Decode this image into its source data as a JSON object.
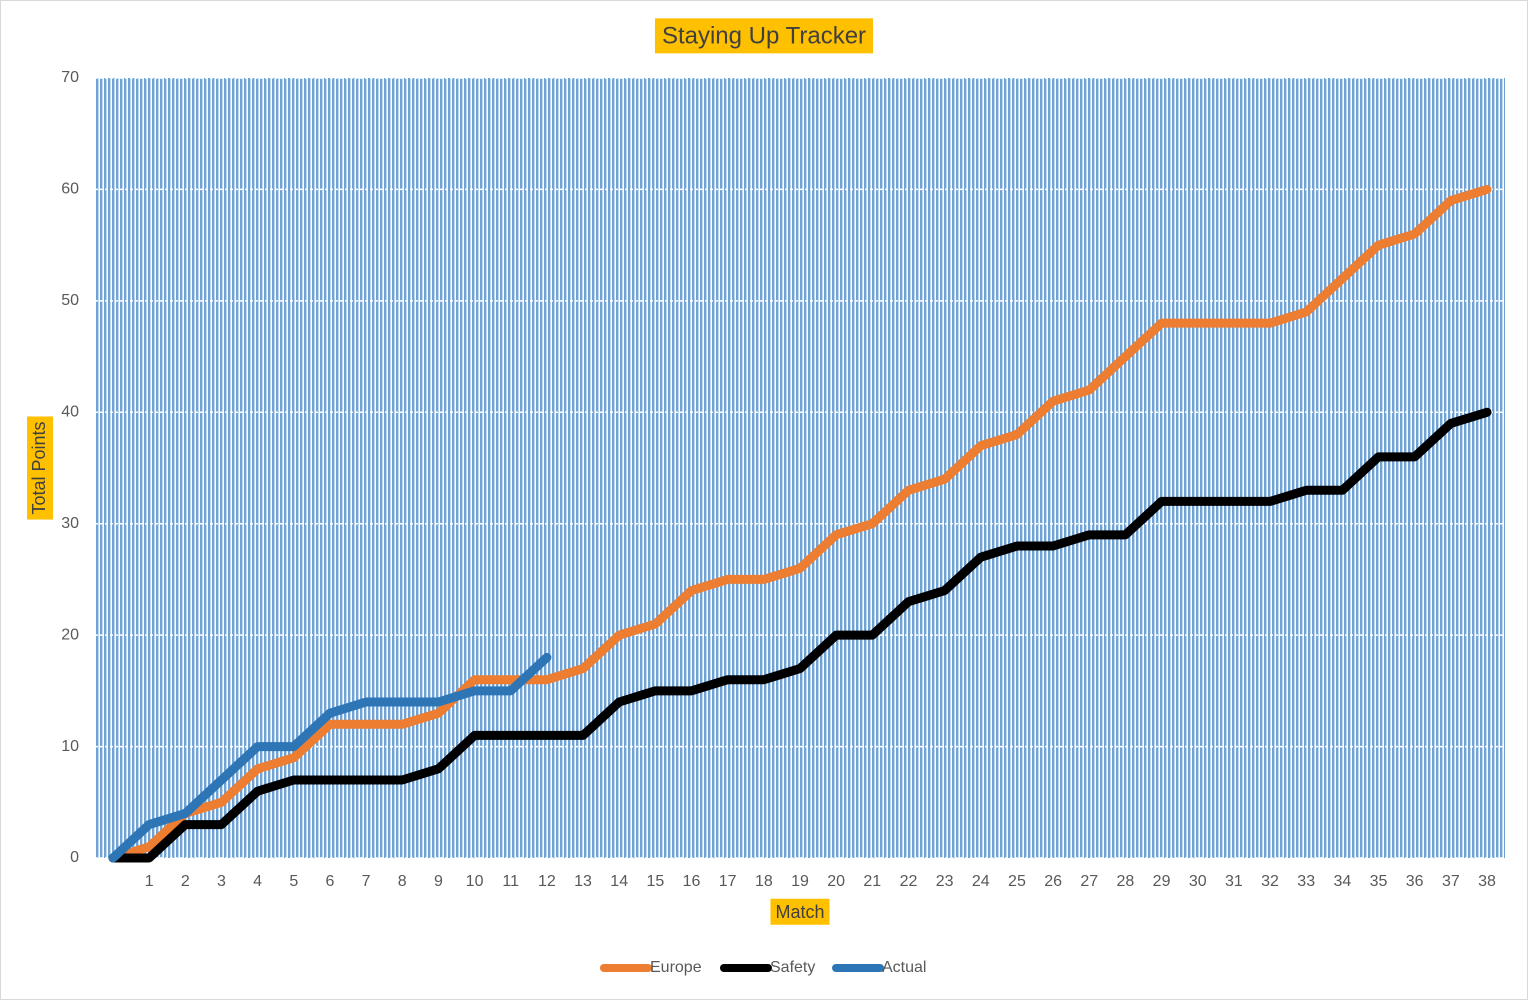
{
  "chart_data": {
    "type": "line",
    "title": "Staying Up Tracker",
    "xlabel": "Match",
    "ylabel": "Total Points",
    "categories": [
      null,
      "1",
      "2",
      "3",
      "4",
      "5",
      "6",
      "7",
      "8",
      "9",
      "10",
      "11",
      "12",
      "13",
      "14",
      "15",
      "16",
      "17",
      "18",
      "19",
      "20",
      "21",
      "22",
      "23",
      "24",
      "25",
      "26",
      "27",
      "28",
      "29",
      "30",
      "31",
      "32",
      "33",
      "34",
      "35",
      "36",
      "37",
      "38"
    ],
    "series": [
      {
        "name": "Europe",
        "color": "#ed7d31",
        "values": [
          0,
          1,
          4,
          5,
          8,
          9,
          12,
          12,
          12,
          13,
          16,
          16,
          16,
          17,
          20,
          21,
          24,
          25,
          25,
          26,
          29,
          30,
          33,
          34,
          37,
          38,
          41,
          42,
          45,
          48,
          48,
          48,
          48,
          49,
          52,
          55,
          56,
          59,
          60
        ]
      },
      {
        "name": "Safety",
        "color": "#000000",
        "values": [
          0,
          0,
          3,
          3,
          6,
          7,
          7,
          7,
          7,
          8,
          11,
          11,
          11,
          11,
          14,
          15,
          15,
          16,
          16,
          17,
          20,
          20,
          23,
          24,
          27,
          28,
          28,
          29,
          29,
          32,
          32,
          32,
          32,
          33,
          33,
          36,
          36,
          39,
          40
        ]
      },
      {
        "name": "Actual",
        "color": "#2e75b6",
        "values": [
          0,
          3,
          4,
          7,
          10,
          10,
          13,
          14,
          14,
          14,
          15,
          15,
          18,
          null,
          null,
          null,
          null,
          null,
          null,
          null,
          null,
          null,
          null,
          null,
          null,
          null,
          null,
          null,
          null,
          null,
          null,
          null,
          null,
          null,
          null,
          null,
          null,
          null,
          null
        ]
      }
    ],
    "ylim": [
      0,
      70
    ],
    "yticks": [
      0,
      10,
      20,
      30,
      40,
      50,
      60,
      70
    ],
    "grid": true,
    "legend": "bottom"
  }
}
